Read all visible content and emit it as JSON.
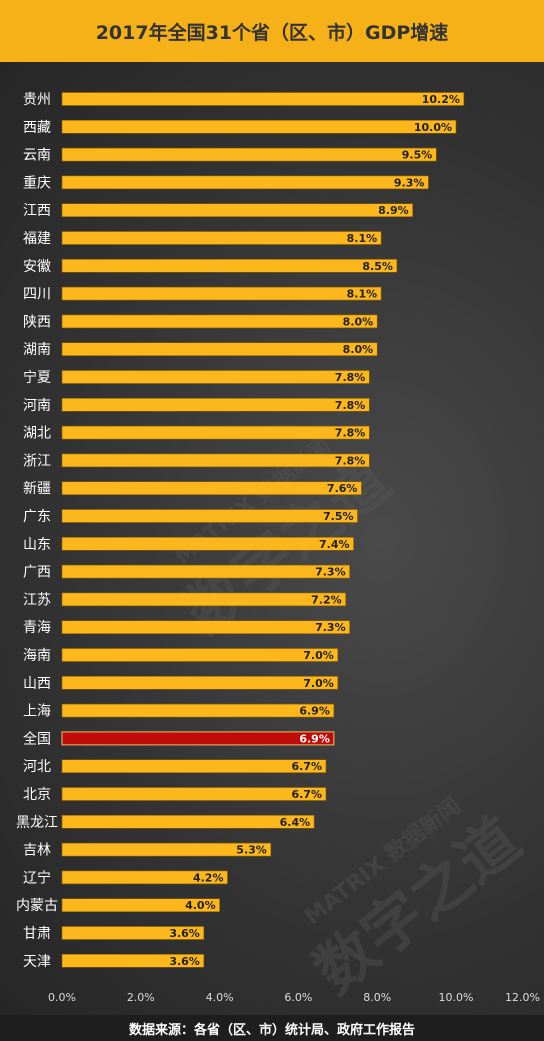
{
  "title": "2017年全国31个省（区、市）GDP增速",
  "source": "数据来源：各省（区、市）统计局、政府工作报告",
  "watermark": {
    "main": "数字之道",
    "sub": "MATRIX 数据新闻"
  },
  "colors": {
    "bar": "#fbb71c",
    "highlight": "#c00b0b",
    "header": "#f7b118"
  },
  "chart_data": {
    "type": "bar",
    "orientation": "horizontal",
    "title": "2017年全国31个省（区、市）GDP增速",
    "categories": [
      "贵州",
      "西藏",
      "云南",
      "重庆",
      "江西",
      "福建",
      "安徽",
      "四川",
      "陕西",
      "湖南",
      "宁夏",
      "河南",
      "湖北",
      "浙江",
      "新疆",
      "广东",
      "山东",
      "广西",
      "江苏",
      "青海",
      "海南",
      "山西",
      "上海",
      "全国",
      "河北",
      "北京",
      "黑龙江",
      "吉林",
      "辽宁",
      "内蒙古",
      "甘肃",
      "天津"
    ],
    "values": [
      10.2,
      10.0,
      9.5,
      9.3,
      8.9,
      8.1,
      8.5,
      8.1,
      8.0,
      8.0,
      7.8,
      7.8,
      7.8,
      7.8,
      7.6,
      7.5,
      7.4,
      7.3,
      7.2,
      7.3,
      7.0,
      7.0,
      6.9,
      6.9,
      6.7,
      6.7,
      6.4,
      5.3,
      4.2,
      4.0,
      3.6,
      3.6
    ],
    "value_labels": [
      "10.2%",
      "10.0%",
      "9.5%",
      "9.3%",
      "8.9%",
      "8.1%",
      "8.5%",
      "8.1%",
      "8.0%",
      "8.0%",
      "7.8%",
      "7.8%",
      "7.8%",
      "7.8%",
      "7.6%",
      "7.5%",
      "7.4%",
      "7.3%",
      "7.2%",
      "7.3%",
      "7.0%",
      "7.0%",
      "6.9%",
      "6.9%",
      "6.7%",
      "6.7%",
      "6.4%",
      "5.3%",
      "4.2%",
      "4.0%",
      "3.6%",
      "3.6%"
    ],
    "highlight": "全国",
    "xlim": [
      0,
      12
    ],
    "xticks": [
      0,
      2,
      4,
      6,
      8,
      10,
      12
    ],
    "xtick_labels": [
      "0.0%",
      "2.0%",
      "4.0%",
      "6.0%",
      "8.0%",
      "10.0%",
      "12.0%"
    ],
    "grid": false,
    "legend": "none"
  }
}
